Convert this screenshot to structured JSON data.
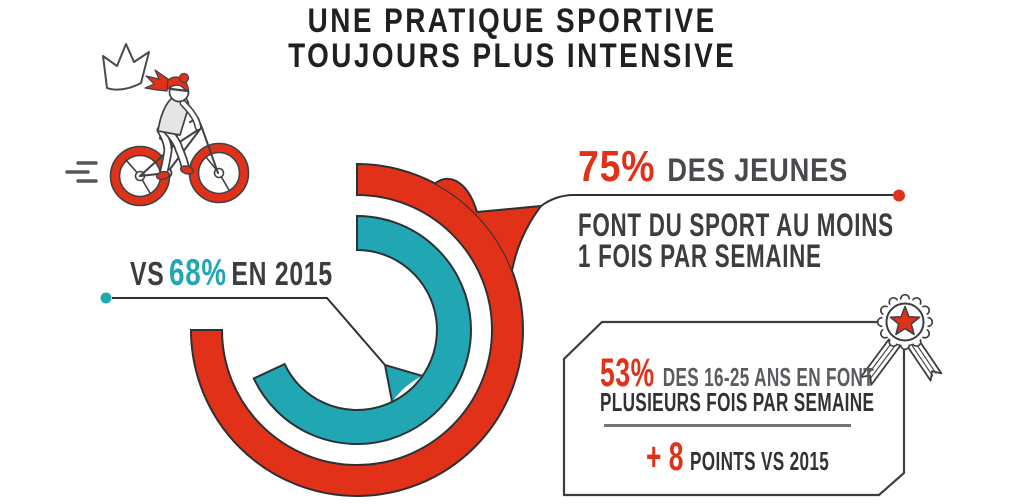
{
  "title": {
    "line1": "UNE PRATIQUE SPORTIVE",
    "line2": "TOUJOURS PLUS INTENSIVE"
  },
  "stat75": {
    "value": "75%",
    "label": "DES JEUNES",
    "detail1": "FONT DU SPORT AU MOINS",
    "detail2": "1 FOIS PAR SEMAINE"
  },
  "stat68": {
    "prefix": "VS",
    "value": "68%",
    "suffix": "EN 2015"
  },
  "badge": {
    "value": "53%",
    "label": "DES 16-25 ANS EN FONT",
    "line2": "PLUSIEURS FOIS PAR SEMAINE",
    "delta": "+ 8",
    "delta_label": "POINTS VS 2015"
  },
  "colors": {
    "red": "#e23119",
    "teal": "#21a6b4",
    "ink": "#2e3032",
    "title_text": "#1f2022",
    "dark_text": "#3b3d40",
    "gray_text": "#47494c",
    "box_gray_text": "#595b5f",
    "divider": "#717376"
  },
  "icons": {
    "medal": "rosette-medal-with-star",
    "cyclist": "girl-riding-bicycle",
    "crown": "hand-drawn-crown",
    "speed": "motion-dashes",
    "red_dot": "callout-endpoint-dot",
    "teal_dot": "callout-endpoint-dot"
  },
  "chart_data": {
    "type": "pie",
    "subtype": "concentric-donut-arcs",
    "unit": "%",
    "start_angle_deg": 0,
    "direction": "clockwise",
    "series": [
      {
        "label": "DES JEUNES FONT DU SPORT AU MOINS 1 FOIS PAR SEMAINE",
        "value": 75,
        "color": "#e23119",
        "ring": "outer"
      },
      {
        "label": "EN 2015",
        "value": 68,
        "color": "#21a6b4",
        "ring": "inner"
      }
    ],
    "callouts": [
      {
        "text": "75% DES JEUNES FONT DU SPORT AU MOINS 1 FOIS PAR SEMAINE"
      },
      {
        "text": "VS 68% EN 2015"
      },
      {
        "text": "53% DES 16-25 ANS EN FONT PLUSIEURS FOIS PAR SEMAINE"
      },
      {
        "text": "+ 8 POINTS VS 2015"
      }
    ]
  }
}
